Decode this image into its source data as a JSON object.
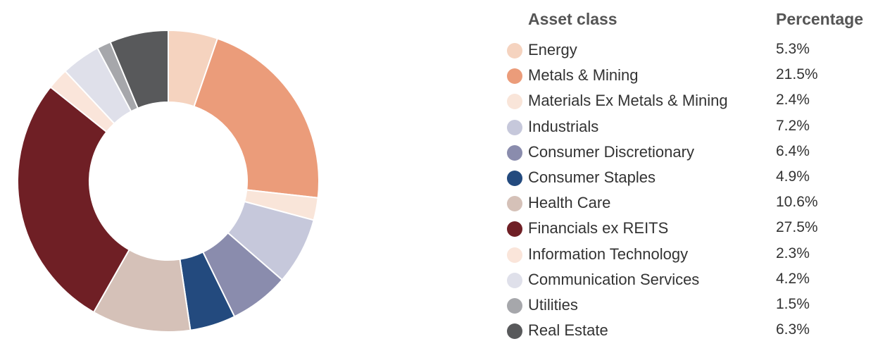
{
  "chart_data": {
    "type": "pie",
    "variant": "donut",
    "title": "",
    "legend": {
      "placement": "right",
      "header_label": "Asset class",
      "header_value": "Percentage"
    },
    "slices": [
      {
        "label": "Energy",
        "value": 5.3,
        "value_label": "5.3%",
        "color": "#f5d3bf"
      },
      {
        "label": "Metals & Mining",
        "value": 21.5,
        "value_label": "21.5%",
        "color": "#eb9c7a"
      },
      {
        "label": "Materials Ex Metals & Mining",
        "value": 2.4,
        "value_label": "2.4%",
        "color": "#f9e5d9"
      },
      {
        "label": "Industrials",
        "value": 7.2,
        "value_label": "7.2%",
        "color": "#c6c8db"
      },
      {
        "label": "Consumer Discretionary",
        "value": 6.4,
        "value_label": "6.4%",
        "color": "#8a8cad"
      },
      {
        "label": "Consumer Staples",
        "value": 4.9,
        "value_label": "4.9%",
        "color": "#234a7e"
      },
      {
        "label": "Health Care",
        "value": 10.6,
        "value_label": "10.6%",
        "color": "#d5c1b8"
      },
      {
        "label": "Financials ex REITS",
        "value": 27.5,
        "value_label": "27.5%",
        "color": "#6f1f25"
      },
      {
        "label": "Information Technology",
        "value": 2.3,
        "value_label": "2.3%",
        "color": "#fae5da"
      },
      {
        "label": "Communication Services",
        "value": 4.2,
        "value_label": "4.2%",
        "color": "#dfe0ea"
      },
      {
        "label": "Utilities",
        "value": 1.5,
        "value_label": "1.5%",
        "color": "#a6a7ab"
      },
      {
        "label": "Real Estate",
        "value": 6.3,
        "value_label": "6.3%",
        "color": "#58595b"
      }
    ]
  }
}
